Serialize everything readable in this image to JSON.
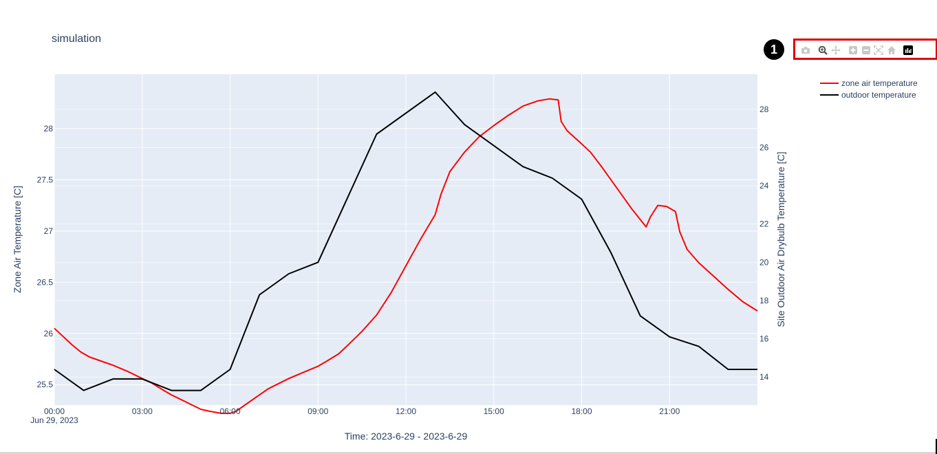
{
  "chart_data": {
    "type": "line",
    "title": "simulation",
    "xlabel": "Time: 2023-6-29 - 2023-6-29",
    "ylabel": "Zone Air Temperature [C]",
    "y2label": "Site Outdoor Air Drybulb Temperature [C]",
    "x_date_label": "Jun 29, 2023",
    "x_ticks": [
      "00:00",
      "03:00",
      "06:00",
      "09:00",
      "12:00",
      "15:00",
      "18:00",
      "21:00"
    ],
    "y_ticks": [
      "25.5",
      "26",
      "26.5",
      "27",
      "27.5",
      "28"
    ],
    "y2_ticks": [
      "14",
      "16",
      "18",
      "20",
      "22",
      "24",
      "26",
      "28"
    ],
    "xlim_hours": [
      0,
      24
    ],
    "ylim": [
      25.3,
      28.53
    ],
    "y2lim": [
      12.53,
      29.83
    ],
    "grid": true,
    "legend_position": "top-right",
    "series": [
      {
        "name": "zone air temperature",
        "axis": "left",
        "color": "#ff0000",
        "x_hours": [
          0,
          0.3,
          0.6,
          0.9,
          1.2,
          1.5,
          2,
          2.5,
          3,
          3.3,
          3.7,
          4,
          4.5,
          5,
          5.3,
          5.7,
          6,
          6.2,
          6.5,
          7,
          7.3,
          8,
          8.5,
          9,
          9.3,
          9.7,
          10,
          10.5,
          11,
          11.5,
          12,
          12.5,
          13,
          13.2,
          13.5,
          14,
          14.5,
          15,
          15.5,
          16,
          16.5,
          16.9,
          17.2,
          17.3,
          17.5,
          18,
          18.3,
          18.7,
          19.2,
          19.7,
          20.2,
          20.35,
          20.6,
          20.9,
          21.2,
          21.35,
          21.6,
          22,
          22.5,
          23,
          23.5,
          24
        ],
        "values": [
          26.05,
          25.97,
          25.89,
          25.82,
          25.77,
          25.74,
          25.69,
          25.63,
          25.56,
          25.52,
          25.45,
          25.4,
          25.33,
          25.26,
          25.24,
          25.22,
          25.22,
          25.24,
          25.3,
          25.4,
          25.46,
          25.56,
          25.62,
          25.68,
          25.73,
          25.8,
          25.88,
          26.02,
          26.18,
          26.4,
          26.66,
          26.92,
          27.16,
          27.36,
          27.58,
          27.77,
          27.92,
          28.03,
          28.13,
          28.22,
          28.27,
          28.29,
          28.28,
          28.07,
          27.98,
          27.85,
          27.77,
          27.62,
          27.42,
          27.22,
          27.04,
          27.14,
          27.25,
          27.24,
          27.19,
          26.99,
          26.82,
          26.69,
          26.56,
          26.43,
          26.31,
          26.22
        ]
      },
      {
        "name": "outdoor temperature",
        "axis": "right",
        "color": "#000000",
        "x_hours": [
          0,
          1,
          2,
          3,
          4,
          5,
          6,
          7,
          8,
          9,
          11,
          13,
          14,
          16,
          17,
          18,
          19,
          20,
          21,
          22,
          23,
          24
        ],
        "values": [
          14.4,
          13.3,
          13.9,
          13.9,
          13.3,
          13.3,
          14.4,
          18.3,
          19.4,
          20.0,
          26.7,
          28.9,
          27.2,
          25.0,
          24.4,
          23.3,
          20.5,
          17.2,
          16.1,
          15.6,
          14.4,
          14.4
        ]
      }
    ]
  },
  "modebar": {
    "badge_number": "1",
    "buttons": [
      {
        "icon": "camera-icon",
        "color": "#c8c8c8"
      },
      {
        "icon": "zoom-icon",
        "color": "#555555"
      },
      {
        "icon": "pan-icon",
        "color": "#c8c8c8"
      },
      {
        "icon": "zoom-in-icon",
        "color": "#c8c8c8"
      },
      {
        "icon": "zoom-out-icon",
        "color": "#c8c8c8"
      },
      {
        "icon": "autoscale-icon",
        "color": "#c8c8c8"
      },
      {
        "icon": "home-icon",
        "color": "#c8c8c8"
      },
      {
        "icon": "plotly-logo-icon",
        "color": "#000000"
      }
    ]
  },
  "colors": {
    "plot_bg": "#e5ecf6",
    "grid": "#ffffff",
    "text": "#2a3f5f",
    "highlight_box": "#e00000"
  }
}
